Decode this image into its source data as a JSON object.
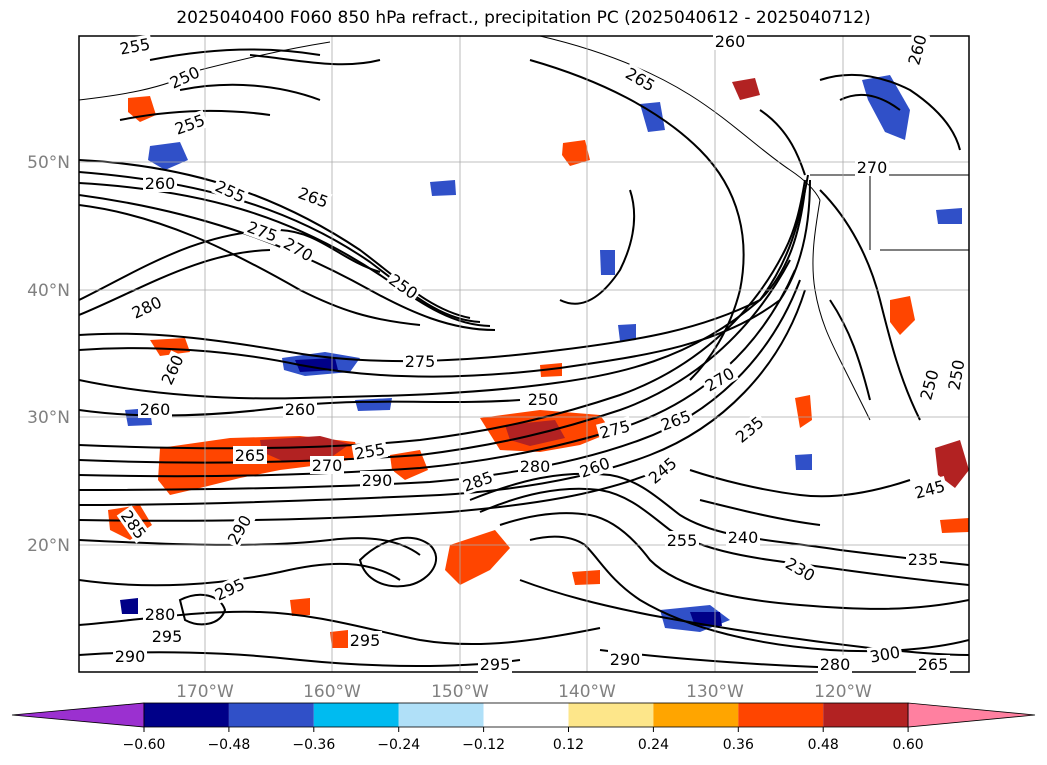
{
  "title": "2025040400 F060 850 hPa refract., precipitation PC (2025040612 - 2025040712)",
  "map": {
    "lat_ticks": [
      "50°N",
      "40°N",
      "30°N",
      "20°N"
    ],
    "lon_ticks": [
      "170°W",
      "160°W",
      "150°W",
      "140°W",
      "130°W",
      "120°W"
    ],
    "tick_color": "#808080",
    "contour_labels": [
      "255",
      "250",
      "255",
      "260",
      "255",
      "265",
      "275",
      "270",
      "250",
      "280",
      "260",
      "275",
      "260",
      "260",
      "255",
      "265",
      "270",
      "290",
      "285",
      "280",
      "260",
      "250",
      "275",
      "265",
      "270",
      "235",
      "245",
      "255",
      "240",
      "230",
      "235",
      "245",
      "285",
      "290",
      "295",
      "280",
      "290",
      "295",
      "295",
      "295",
      "290",
      "300",
      "280",
      "265",
      "265",
      "270",
      "260",
      "250",
      "260",
      "250"
    ]
  },
  "colorbar": {
    "ticks": [
      "−0.60",
      "−0.48",
      "−0.36",
      "−0.24",
      "−0.12",
      "0.12",
      "0.24",
      "0.36",
      "0.48",
      "0.60"
    ],
    "colors": [
      "#9b30d0",
      "#000088",
      "#3050c8",
      "#00bbf0",
      "#b0e0f8",
      "#ffffff",
      "#fde68a",
      "#ffa500",
      "#ff4500",
      "#b22222",
      "#ff80a0"
    ]
  }
}
